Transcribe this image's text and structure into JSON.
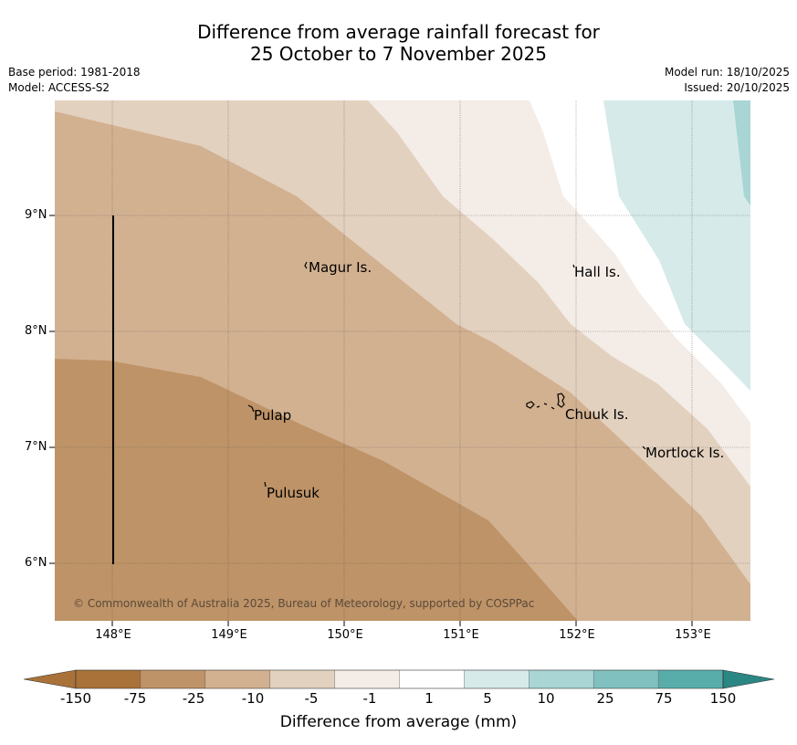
{
  "header": {
    "title_line1": "Difference from average rainfall forecast for",
    "title_line2": "25 October to 7 November 2025",
    "base_period": "Base period: 1981-2018",
    "model": "Model: ACCESS-S2",
    "model_run": "Model run: 18/10/2025",
    "issued": "Issued: 20/10/2025"
  },
  "map": {
    "lat_labels": [
      "9°N",
      "8°N",
      "7°N",
      "6°N"
    ],
    "lon_labels": [
      "148°E",
      "149°E",
      "150°E",
      "151°E",
      "152°E",
      "153°E"
    ],
    "places": [
      "Magur Is.",
      "Hall Is.",
      "Pulap",
      "Chuuk Is.",
      "Mortlock Is.",
      "Pulusuk"
    ],
    "copyright": "© Commonwealth of Australia 2025, Bureau of Meteorology, supported by COSPPac"
  },
  "colorbar": {
    "labels": [
      "-150",
      "-75",
      "-25",
      "-10",
      "-5",
      "-1",
      "1",
      "5",
      "10",
      "25",
      "75",
      "150"
    ],
    "colors": [
      "#a97238",
      "#be9367",
      "#d2b191",
      "#e3d1bf",
      "#f4ece6",
      "#ffffff",
      "#d6eaea",
      "#a9d5d5",
      "#80c1c0",
      "#58adab",
      "#319b98",
      "#2a8784"
    ],
    "title": "Difference from average (mm)"
  }
}
